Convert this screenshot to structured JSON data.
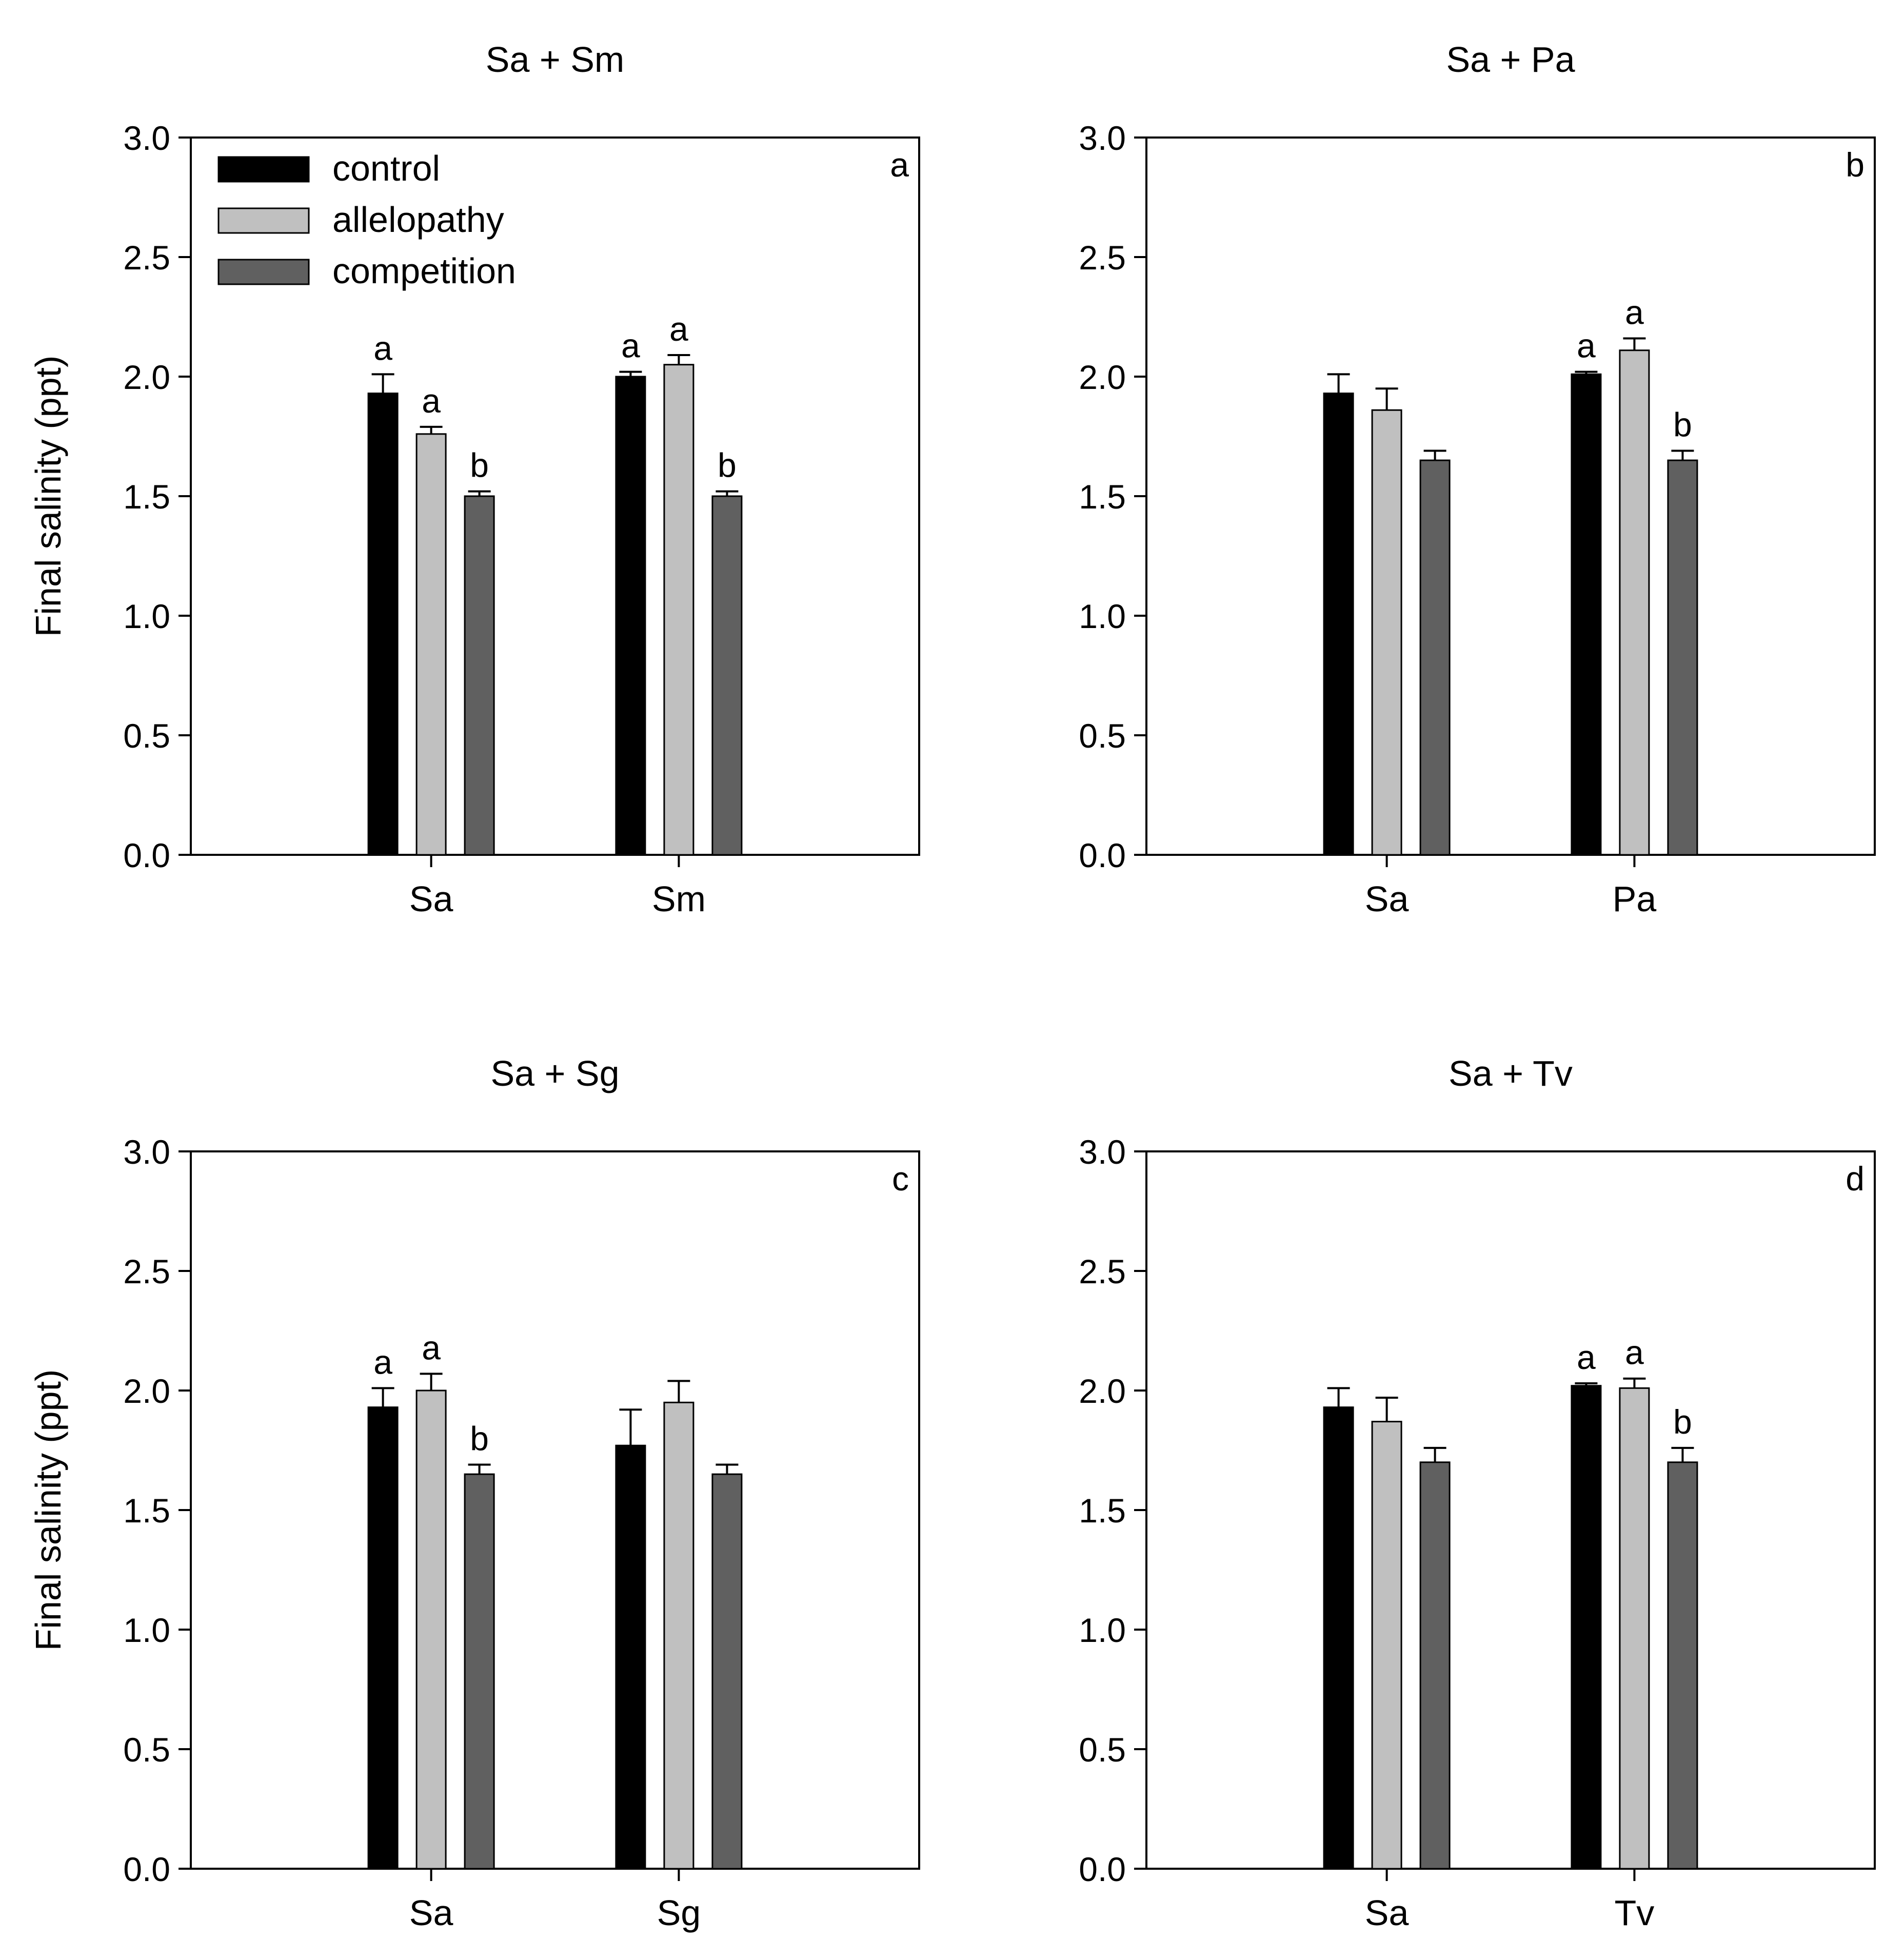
{
  "legend": [
    {
      "key": "control",
      "label": "control",
      "color": "#000000"
    },
    {
      "key": "allelopathy",
      "label": "allelopathy",
      "color": "#c0c0c0"
    },
    {
      "key": "competition",
      "label": "competition",
      "color": "#606060"
    }
  ],
  "chart_data": [
    {
      "type": "bar",
      "title": "Sa + Sm",
      "panel_label": "a",
      "ylabel": "Final salinity (ppt)",
      "xlabel": "",
      "ylim": [
        0,
        3.0
      ],
      "yticks": [
        "0.0",
        "0.5",
        "1.0",
        "1.5",
        "2.0",
        "2.5",
        "3.0"
      ],
      "categories": [
        "Sa",
        "Sm"
      ],
      "show_legend": true,
      "series": [
        {
          "name": "control",
          "values": [
            1.93,
            2.0
          ],
          "errors": [
            0.08,
            0.02
          ],
          "letters": [
            "a",
            "a"
          ]
        },
        {
          "name": "allelopathy",
          "values": [
            1.76,
            2.05
          ],
          "errors": [
            0.03,
            0.04
          ],
          "letters": [
            "a",
            "a"
          ]
        },
        {
          "name": "competition",
          "values": [
            1.5,
            1.5
          ],
          "errors": [
            0.02,
            0.02
          ],
          "letters": [
            "b",
            "b"
          ]
        }
      ]
    },
    {
      "type": "bar",
      "title": "Sa + Pa",
      "panel_label": "b",
      "ylabel": "",
      "xlabel": "",
      "ylim": [
        0,
        3.0
      ],
      "yticks": [
        "0.0",
        "0.5",
        "1.0",
        "1.5",
        "2.0",
        "2.5",
        "3.0"
      ],
      "categories": [
        "Sa",
        "Pa"
      ],
      "show_legend": false,
      "series": [
        {
          "name": "control",
          "values": [
            1.93,
            2.01
          ],
          "errors": [
            0.08,
            0.01
          ],
          "letters": [
            "",
            "a"
          ]
        },
        {
          "name": "allelopathy",
          "values": [
            1.86,
            2.11
          ],
          "errors": [
            0.09,
            0.05
          ],
          "letters": [
            "",
            "a"
          ]
        },
        {
          "name": "competition",
          "values": [
            1.65,
            1.65
          ],
          "errors": [
            0.04,
            0.04
          ],
          "letters": [
            "",
            "b"
          ]
        }
      ]
    },
    {
      "type": "bar",
      "title": "Sa + Sg",
      "panel_label": "c",
      "ylabel": "Final salinity (ppt)",
      "xlabel": "",
      "ylim": [
        0,
        3.0
      ],
      "yticks": [
        "0.0",
        "0.5",
        "1.0",
        "1.5",
        "2.0",
        "2.5",
        "3.0"
      ],
      "categories": [
        "Sa",
        "Sg"
      ],
      "show_legend": false,
      "series": [
        {
          "name": "control",
          "values": [
            1.93,
            1.77
          ],
          "errors": [
            0.08,
            0.15
          ],
          "letters": [
            "a",
            ""
          ]
        },
        {
          "name": "allelopathy",
          "values": [
            2.0,
            1.95
          ],
          "errors": [
            0.07,
            0.09
          ],
          "letters": [
            "a",
            ""
          ]
        },
        {
          "name": "competition",
          "values": [
            1.65,
            1.65
          ],
          "errors": [
            0.04,
            0.04
          ],
          "letters": [
            "b",
            ""
          ]
        }
      ]
    },
    {
      "type": "bar",
      "title": "Sa + Tv",
      "panel_label": "d",
      "ylabel": "",
      "xlabel": "",
      "ylim": [
        0,
        3.0
      ],
      "yticks": [
        "0.0",
        "0.5",
        "1.0",
        "1.5",
        "2.0",
        "2.5",
        "3.0"
      ],
      "categories": [
        "Sa",
        "Tv"
      ],
      "show_legend": false,
      "series": [
        {
          "name": "control",
          "values": [
            1.93,
            2.02
          ],
          "errors": [
            0.08,
            0.01
          ],
          "letters": [
            "",
            "a"
          ]
        },
        {
          "name": "allelopathy",
          "values": [
            1.87,
            2.01
          ],
          "errors": [
            0.1,
            0.04
          ],
          "letters": [
            "",
            "a"
          ]
        },
        {
          "name": "competition",
          "values": [
            1.7,
            1.7
          ],
          "errors": [
            0.06,
            0.06
          ],
          "letters": [
            "",
            "b"
          ]
        }
      ]
    }
  ]
}
